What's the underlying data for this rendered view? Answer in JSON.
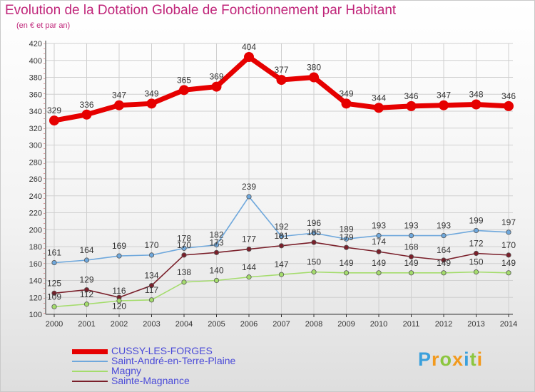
{
  "title": "Evolution de la Dotation Globale de Fonctionnement par Habitant",
  "subtitle": "(en € et par an)",
  "colors": {
    "title": "#c0267a",
    "legend_text": "#4a4ad8",
    "grid": "#d0d0d0",
    "axis": "#333333",
    "axis_dots": "#cc3333"
  },
  "chart_data": {
    "type": "line",
    "x": [
      "2000",
      "2001",
      "2002",
      "2003",
      "2004",
      "2005",
      "2006",
      "2007",
      "2008",
      "2009",
      "2010",
      "2011",
      "2012",
      "2013",
      "2014"
    ],
    "ylim": [
      100,
      420
    ],
    "yticks": [
      100,
      120,
      140,
      160,
      180,
      200,
      220,
      240,
      260,
      280,
      300,
      320,
      340,
      360,
      380,
      400,
      420
    ],
    "grid": true,
    "legend_position": "bottom-left",
    "series": [
      {
        "name": "CUSSY-LES-FORGES",
        "color": "#e60000",
        "width": 7,
        "marker": 7,
        "values": [
          329,
          336,
          347,
          349,
          365,
          369,
          404,
          377,
          380,
          349,
          344,
          346,
          347,
          348,
          346
        ]
      },
      {
        "name": "Saint-André-en-Terre-Plaine",
        "color": "#6fa8dc",
        "width": 1.6,
        "marker": 3.2,
        "values": [
          161,
          164,
          169,
          170,
          178,
          182,
          239,
          192,
          196,
          189,
          193,
          193,
          193,
          199,
          197
        ]
      },
      {
        "name": "Magny",
        "color": "#a4dc6c",
        "width": 1.6,
        "marker": 3.2,
        "values": [
          109,
          112,
          116,
          117,
          138,
          140,
          144,
          147,
          150,
          149,
          149,
          149,
          149,
          150,
          149
        ]
      },
      {
        "name": "Sainte-Magnance",
        "color": "#7a1f2a",
        "width": 1.6,
        "marker": 3.2,
        "values": [
          125,
          129,
          120,
          134,
          170,
          173,
          177,
          181,
          185,
          179,
          174,
          168,
          164,
          172,
          170
        ]
      }
    ],
    "data_labels": [
      [
        "329",
        "336",
        "347",
        "349",
        "365",
        "369",
        "404",
        "377",
        "380",
        "349",
        "344",
        "346",
        "347",
        "348",
        "346"
      ],
      [
        "161",
        "164",
        "169",
        "170",
        "178",
        "182",
        "239",
        "192",
        "196",
        "189",
        "193",
        "193",
        "193",
        "199",
        "197"
      ],
      [
        "109",
        "112",
        "116",
        "117",
        "138",
        "140",
        "144",
        "147",
        "150",
        "149",
        "149",
        "149",
        "149",
        "150",
        "149"
      ],
      [
        "125",
        "129",
        "120",
        "134",
        "170",
        "173",
        "177",
        "181",
        "185",
        "179",
        "174",
        "168",
        "164",
        "172",
        "170"
      ]
    ]
  },
  "legend": [
    {
      "label": "CUSSY-LES-FORGES"
    },
    {
      "label": "Saint-André-en-Terre-Plaine"
    },
    {
      "label": "Magny"
    },
    {
      "label": "Sainte-Magnance"
    }
  ],
  "logo": {
    "letters": [
      "P",
      "r",
      "o",
      "x",
      "i",
      "t",
      "i"
    ],
    "colors": [
      "#3aa0dc",
      "#f29a1e",
      "#8cc63f",
      "#f29a1e",
      "#3aa0dc",
      "#8cc63f",
      "#f29a1e"
    ]
  }
}
